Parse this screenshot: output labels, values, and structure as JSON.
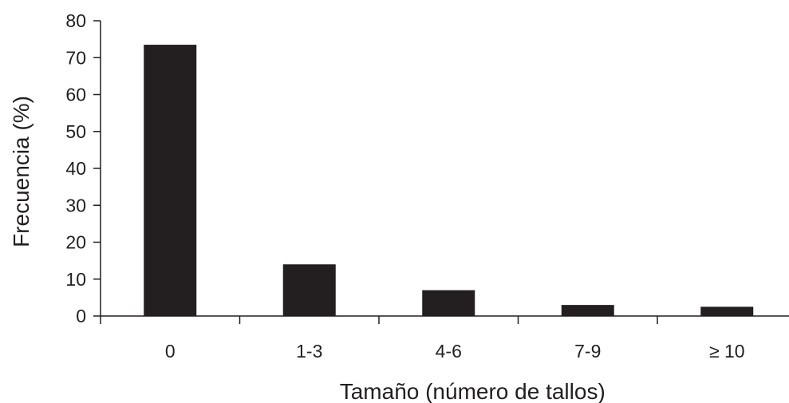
{
  "chart_data": {
    "type": "bar",
    "title": "",
    "xlabel": "Tamaño (número de tallos)",
    "ylabel": "Frecuencia (%)",
    "categories": [
      "0",
      "1-3",
      "4-6",
      "7-9",
      "≥ 10"
    ],
    "values": [
      73.5,
      14,
      7,
      3,
      2.5
    ],
    "ylim": [
      0,
      80
    ],
    "yticks": [
      0,
      10,
      20,
      30,
      40,
      50,
      60,
      70,
      80
    ],
    "grid": false,
    "legend": "none",
    "bar_color": "#231f20",
    "axis_color": "#231f20"
  }
}
